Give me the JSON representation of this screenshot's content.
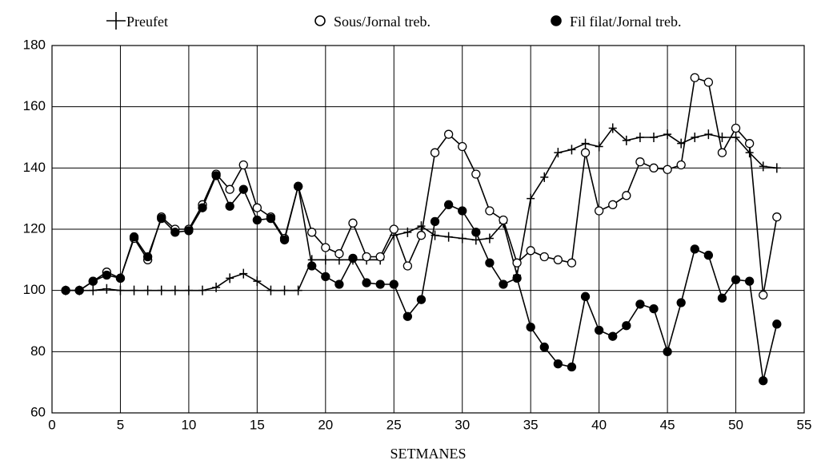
{
  "chart_data": {
    "type": "line",
    "x_label": "SETMANES",
    "x": [
      1,
      2,
      3,
      4,
      5,
      6,
      7,
      8,
      9,
      10,
      11,
      12,
      13,
      14,
      15,
      16,
      17,
      18,
      19,
      20,
      21,
      22,
      23,
      24,
      25,
      26,
      27,
      28,
      29,
      30,
      31,
      32,
      33,
      34,
      35,
      36,
      37,
      38,
      39,
      40,
      41,
      42,
      43,
      44,
      45,
      46,
      47,
      48,
      49,
      50,
      51,
      52,
      53
    ],
    "series": [
      {
        "name": "Preufet",
        "color": "#000000",
        "marker": "plus",
        "values": [
          100,
          100,
          100,
          100.5,
          100,
          100,
          100,
          100,
          100,
          100,
          100,
          101,
          104,
          105.5,
          103,
          100,
          100,
          100,
          110,
          110,
          110,
          110,
          110,
          110,
          118,
          119,
          121,
          118,
          117.5,
          117,
          116.5,
          117,
          122,
          105,
          130,
          137,
          145,
          146,
          148,
          147,
          153,
          149,
          150,
          150,
          151,
          148,
          150,
          151,
          150,
          150,
          145,
          140.5,
          140
        ]
      },
      {
        "name": "Sous/Jornal treb.",
        "color": "#000000",
        "marker": "open-circle",
        "values": [
          100,
          100,
          103,
          106,
          104,
          117,
          110,
          124,
          120,
          120,
          128,
          138,
          133,
          141,
          127,
          124,
          117,
          134,
          119,
          114,
          112,
          122,
          111,
          111,
          120,
          108,
          118,
          145,
          151,
          147,
          138,
          126,
          123,
          109,
          113,
          111,
          110,
          109,
          145,
          126,
          128,
          131,
          142,
          140,
          139.5,
          141,
          169.5,
          168,
          145,
          153,
          148,
          98.5,
          124
        ]
      },
      {
        "name": "Fil filat/Jornal treb.",
        "color": "#000000",
        "marker": "filled-circle",
        "values": [
          100,
          100,
          103,
          105,
          104,
          117.5,
          111,
          123.5,
          119,
          119.5,
          127,
          137.5,
          127.5,
          133,
          123,
          123.5,
          116.5,
          134,
          108,
          104.5,
          102,
          110.5,
          102.5,
          102,
          102,
          91.5,
          97,
          122.5,
          128,
          126,
          119,
          109,
          102,
          104,
          88,
          81.5,
          76,
          75,
          98,
          87,
          85,
          88.5,
          95.5,
          94,
          80,
          96,
          113.5,
          111.5,
          97.5,
          103.5,
          103,
          70.5,
          89
        ]
      }
    ],
    "xlim": [
      0,
      55
    ],
    "xticks": [
      0,
      5,
      10,
      15,
      20,
      25,
      30,
      35,
      40,
      45,
      50,
      55
    ],
    "ylim": [
      60,
      180
    ],
    "yticks": [
      60,
      80,
      100,
      120,
      140,
      160,
      180
    ],
    "grid": true,
    "legend": "top"
  }
}
